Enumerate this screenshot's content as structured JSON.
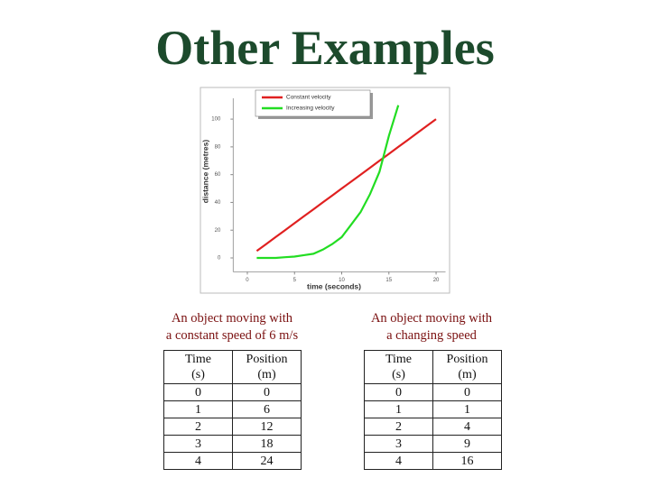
{
  "title": "Other Examples",
  "chart_data": {
    "type": "line",
    "xlabel": "time (seconds)",
    "ylabel": "distance (metres)",
    "xlim": [
      -1.5,
      21
    ],
    "ylim": [
      -10,
      115
    ],
    "xticks": [
      0,
      5,
      10,
      15,
      20
    ],
    "yticks": [
      0,
      20,
      40,
      60,
      80,
      100
    ],
    "legend": "top",
    "series": [
      {
        "name": "Constant velocity",
        "color": "#e02020",
        "x": [
          1,
          2,
          3,
          4,
          5,
          6,
          7,
          8,
          9,
          10,
          11,
          12,
          13,
          14,
          15,
          16,
          17,
          18,
          19,
          20
        ],
        "values": [
          5,
          10,
          15,
          20,
          25,
          30,
          35,
          40,
          45,
          50,
          55,
          60,
          65,
          70,
          75,
          80,
          85,
          90,
          95,
          100
        ]
      },
      {
        "name": "Increasing velocity",
        "color": "#22dd22",
        "x": [
          1,
          2,
          3,
          4,
          5,
          6,
          7,
          8,
          9,
          10,
          11,
          12,
          13,
          14,
          15,
          16
        ],
        "values": [
          0,
          0,
          0,
          0.5,
          1,
          2,
          3,
          6,
          10,
          15,
          24,
          33,
          46,
          62,
          88,
          110
        ]
      }
    ]
  },
  "tables": [
    {
      "caption": [
        "An object moving with",
        "a constant speed of 6 m/s"
      ],
      "header": [
        [
          "Time",
          "(s)"
        ],
        [
          "Position",
          "(m)"
        ]
      ],
      "rows": [
        [
          0,
          0
        ],
        [
          1,
          6
        ],
        [
          2,
          12
        ],
        [
          3,
          18
        ],
        [
          4,
          24
        ]
      ]
    },
    {
      "caption": [
        "An object moving with",
        "a changing speed"
      ],
      "header": [
        [
          "Time",
          "(s)"
        ],
        [
          "Position",
          "(m)"
        ]
      ],
      "rows": [
        [
          0,
          0
        ],
        [
          1,
          1
        ],
        [
          2,
          4
        ],
        [
          3,
          9
        ],
        [
          4,
          16
        ]
      ]
    }
  ]
}
